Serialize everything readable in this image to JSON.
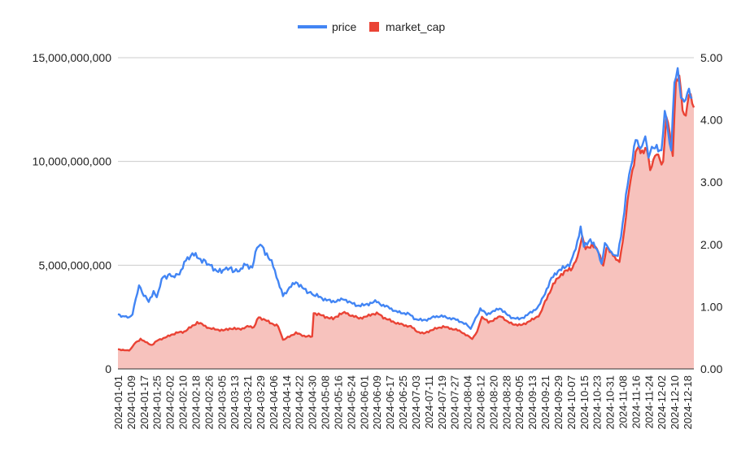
{
  "chart_data": {
    "type": "area",
    "title": "",
    "xlabel": "",
    "ylabel": "",
    "grid": true,
    "legend_position": "top-center",
    "x_ticks": [
      "2024-01-01",
      "2024-01-09",
      "2024-01-17",
      "2024-01-25",
      "2024-02-02",
      "2024-02-10",
      "2024-02-18",
      "2024-02-26",
      "2024-03-05",
      "2024-03-13",
      "2024-03-21",
      "2024-03-29",
      "2024-04-06",
      "2024-04-14",
      "2024-04-22",
      "2024-04-30",
      "2024-05-08",
      "2024-05-16",
      "2024-05-24",
      "2024-06-01",
      "2024-06-09",
      "2024-06-17",
      "2024-06-25",
      "2024-07-03",
      "2024-07-11",
      "2024-07-19",
      "2024-07-27",
      "2024-08-04",
      "2024-08-12",
      "2024-08-20",
      "2024-08-28",
      "2024-09-05",
      "2024-09-13",
      "2024-09-21",
      "2024-09-29",
      "2024-10-07",
      "2024-10-15",
      "2024-10-23",
      "2024-10-31",
      "2024-11-08",
      "2024-11-16",
      "2024-11-24",
      "2024-12-02",
      "2024-12-10",
      "2024-12-18"
    ],
    "y_left": {
      "min": 0,
      "max": 15000000000,
      "ticks": [
        "0",
        "5,000,000,000",
        "10,000,000,000",
        "15,000,000,000"
      ]
    },
    "y_right": {
      "min": 0,
      "max": 5,
      "ticks": [
        "0.00",
        "1.00",
        "2.00",
        "3.00",
        "4.00",
        "5.00"
      ]
    },
    "series": [
      {
        "name": "price",
        "axis": "right",
        "style": "line",
        "color": "#4285f4",
        "keypoints": [
          [
            "2024-01-01",
            0.88
          ],
          [
            "2024-01-04",
            0.85
          ],
          [
            "2024-01-07",
            0.82
          ],
          [
            "2024-01-10",
            0.88
          ],
          [
            "2024-01-12",
            1.12
          ],
          [
            "2024-01-14",
            1.35
          ],
          [
            "2024-01-16",
            1.22
          ],
          [
            "2024-01-20",
            1.08
          ],
          [
            "2024-01-23",
            1.25
          ],
          [
            "2024-01-25",
            1.15
          ],
          [
            "2024-01-28",
            1.45
          ],
          [
            "2024-02-02",
            1.52
          ],
          [
            "2024-02-05",
            1.48
          ],
          [
            "2024-02-09",
            1.58
          ],
          [
            "2024-02-12",
            1.75
          ],
          [
            "2024-02-16",
            1.85
          ],
          [
            "2024-02-20",
            1.78
          ],
          [
            "2024-02-26",
            1.68
          ],
          [
            "2024-03-01",
            1.6
          ],
          [
            "2024-03-05",
            1.55
          ],
          [
            "2024-03-08",
            1.62
          ],
          [
            "2024-03-13",
            1.58
          ],
          [
            "2024-03-17",
            1.6
          ],
          [
            "2024-03-20",
            1.68
          ],
          [
            "2024-03-24",
            1.62
          ],
          [
            "2024-03-27",
            1.95
          ],
          [
            "2024-03-29",
            2.0
          ],
          [
            "2024-04-02",
            1.85
          ],
          [
            "2024-04-06",
            1.65
          ],
          [
            "2024-04-09",
            1.4
          ],
          [
            "2024-04-12",
            1.18
          ],
          [
            "2024-04-16",
            1.3
          ],
          [
            "2024-04-20",
            1.4
          ],
          [
            "2024-04-24",
            1.3
          ],
          [
            "2024-04-30",
            1.2
          ],
          [
            "2024-05-04",
            1.16
          ],
          [
            "2024-05-08",
            1.12
          ],
          [
            "2024-05-12",
            1.08
          ],
          [
            "2024-05-16",
            1.1
          ],
          [
            "2024-05-20",
            1.12
          ],
          [
            "2024-05-24",
            1.06
          ],
          [
            "2024-05-28",
            1.02
          ],
          [
            "2024-06-01",
            1.02
          ],
          [
            "2024-06-05",
            1.06
          ],
          [
            "2024-06-09",
            1.08
          ],
          [
            "2024-06-13",
            1.02
          ],
          [
            "2024-06-17",
            0.98
          ],
          [
            "2024-06-21",
            0.92
          ],
          [
            "2024-06-25",
            0.9
          ],
          [
            "2024-06-29",
            0.88
          ],
          [
            "2024-07-03",
            0.8
          ],
          [
            "2024-07-07",
            0.78
          ],
          [
            "2024-07-11",
            0.8
          ],
          [
            "2024-07-15",
            0.84
          ],
          [
            "2024-07-19",
            0.85
          ],
          [
            "2024-07-23",
            0.82
          ],
          [
            "2024-07-27",
            0.8
          ],
          [
            "2024-07-31",
            0.76
          ],
          [
            "2024-08-04",
            0.7
          ],
          [
            "2024-08-06",
            0.64
          ],
          [
            "2024-08-08",
            0.76
          ],
          [
            "2024-08-12",
            0.96
          ],
          [
            "2024-08-16",
            0.88
          ],
          [
            "2024-08-20",
            0.92
          ],
          [
            "2024-08-24",
            0.98
          ],
          [
            "2024-08-28",
            0.88
          ],
          [
            "2024-09-01",
            0.82
          ],
          [
            "2024-09-05",
            0.8
          ],
          [
            "2024-09-09",
            0.85
          ],
          [
            "2024-09-13",
            0.92
          ],
          [
            "2024-09-17",
            1.0
          ],
          [
            "2024-09-21",
            1.22
          ],
          [
            "2024-09-25",
            1.45
          ],
          [
            "2024-09-29",
            1.58
          ],
          [
            "2024-10-03",
            1.62
          ],
          [
            "2024-10-07",
            1.72
          ],
          [
            "2024-10-10",
            1.95
          ],
          [
            "2024-10-13",
            2.25
          ],
          [
            "2024-10-15",
            2.0
          ],
          [
            "2024-10-19",
            2.05
          ],
          [
            "2024-10-23",
            1.95
          ],
          [
            "2024-10-26",
            1.68
          ],
          [
            "2024-10-28",
            2.02
          ],
          [
            "2024-10-31",
            1.92
          ],
          [
            "2024-11-03",
            1.8
          ],
          [
            "2024-11-05",
            1.85
          ],
          [
            "2024-11-08",
            2.3
          ],
          [
            "2024-11-11",
            3.0
          ],
          [
            "2024-11-13",
            3.2
          ],
          [
            "2024-11-16",
            3.7
          ],
          [
            "2024-11-19",
            3.55
          ],
          [
            "2024-11-22",
            3.7
          ],
          [
            "2024-11-24",
            3.45
          ],
          [
            "2024-11-26",
            3.5
          ],
          [
            "2024-11-28",
            3.62
          ],
          [
            "2024-12-02",
            3.45
          ],
          [
            "2024-12-04",
            4.2
          ],
          [
            "2024-12-06",
            3.8
          ],
          [
            "2024-12-08",
            3.5
          ],
          [
            "2024-12-10",
            4.65
          ],
          [
            "2024-12-12",
            4.75
          ],
          [
            "2024-12-14",
            4.45
          ],
          [
            "2024-12-16",
            4.2
          ],
          [
            "2024-12-18",
            4.52
          ],
          [
            "2024-12-21",
            4.35
          ]
        ]
      },
      {
        "name": "market_cap",
        "axis": "left",
        "style": "area",
        "color": "#ea4335",
        "fill": "#f7c2bd",
        "keypoints": [
          [
            "2024-01-01",
            950000000
          ],
          [
            "2024-01-05",
            900000000
          ],
          [
            "2024-01-08",
            880000000
          ],
          [
            "2024-01-11",
            1200000000
          ],
          [
            "2024-01-15",
            1450000000
          ],
          [
            "2024-01-18",
            1300000000
          ],
          [
            "2024-01-22",
            1150000000
          ],
          [
            "2024-01-26",
            1400000000
          ],
          [
            "2024-01-30",
            1500000000
          ],
          [
            "2024-02-03",
            1650000000
          ],
          [
            "2024-02-07",
            1750000000
          ],
          [
            "2024-02-11",
            1800000000
          ],
          [
            "2024-02-15",
            2000000000
          ],
          [
            "2024-02-19",
            2250000000
          ],
          [
            "2024-02-23",
            2100000000
          ],
          [
            "2024-02-27",
            1950000000
          ],
          [
            "2024-03-02",
            1900000000
          ],
          [
            "2024-03-06",
            1850000000
          ],
          [
            "2024-03-10",
            1950000000
          ],
          [
            "2024-03-14",
            1920000000
          ],
          [
            "2024-03-18",
            1950000000
          ],
          [
            "2024-03-22",
            2050000000
          ],
          [
            "2024-03-25",
            2000000000
          ],
          [
            "2024-03-28",
            2500000000
          ],
          [
            "2024-04-01",
            2350000000
          ],
          [
            "2024-04-05",
            2200000000
          ],
          [
            "2024-04-09",
            2050000000
          ],
          [
            "2024-04-12",
            1400000000
          ],
          [
            "2024-04-16",
            1550000000
          ],
          [
            "2024-04-20",
            1750000000
          ],
          [
            "2024-04-24",
            1600000000
          ],
          [
            "2024-04-30",
            1550000000
          ],
          [
            "2024-05-01",
            2700000000
          ],
          [
            "2024-05-05",
            2600000000
          ],
          [
            "2024-05-09",
            2500000000
          ],
          [
            "2024-05-13",
            2400000000
          ],
          [
            "2024-05-17",
            2650000000
          ],
          [
            "2024-05-21",
            2700000000
          ],
          [
            "2024-05-25",
            2550000000
          ],
          [
            "2024-05-29",
            2450000000
          ],
          [
            "2024-06-02",
            2500000000
          ],
          [
            "2024-06-06",
            2650000000
          ],
          [
            "2024-06-10",
            2650000000
          ],
          [
            "2024-06-14",
            2450000000
          ],
          [
            "2024-06-18",
            2300000000
          ],
          [
            "2024-06-22",
            2200000000
          ],
          [
            "2024-06-26",
            2100000000
          ],
          [
            "2024-06-30",
            2050000000
          ],
          [
            "2024-07-04",
            1800000000
          ],
          [
            "2024-07-08",
            1700000000
          ],
          [
            "2024-07-12",
            1850000000
          ],
          [
            "2024-07-16",
            1950000000
          ],
          [
            "2024-07-20",
            2050000000
          ],
          [
            "2024-07-24",
            1950000000
          ],
          [
            "2024-07-28",
            1900000000
          ],
          [
            "2024-08-01",
            1750000000
          ],
          [
            "2024-08-05",
            1550000000
          ],
          [
            "2024-08-07",
            1450000000
          ],
          [
            "2024-08-10",
            1800000000
          ],
          [
            "2024-08-13",
            2500000000
          ],
          [
            "2024-08-17",
            2250000000
          ],
          [
            "2024-08-21",
            2400000000
          ],
          [
            "2024-08-25",
            2550000000
          ],
          [
            "2024-08-29",
            2250000000
          ],
          [
            "2024-09-02",
            2150000000
          ],
          [
            "2024-09-06",
            2100000000
          ],
          [
            "2024-09-10",
            2250000000
          ],
          [
            "2024-09-14",
            2400000000
          ],
          [
            "2024-09-18",
            2650000000
          ],
          [
            "2024-09-22",
            3400000000
          ],
          [
            "2024-09-26",
            4050000000
          ],
          [
            "2024-09-30",
            4500000000
          ],
          [
            "2024-10-04",
            4700000000
          ],
          [
            "2024-10-08",
            4900000000
          ],
          [
            "2024-10-11",
            5400000000
          ],
          [
            "2024-10-14",
            6350000000
          ],
          [
            "2024-10-16",
            5850000000
          ],
          [
            "2024-10-20",
            5950000000
          ],
          [
            "2024-10-24",
            5700000000
          ],
          [
            "2024-10-27",
            4900000000
          ],
          [
            "2024-10-29",
            5900000000
          ],
          [
            "2024-11-01",
            5600000000
          ],
          [
            "2024-11-04",
            5250000000
          ],
          [
            "2024-11-06",
            5200000000
          ],
          [
            "2024-11-09",
            6600000000
          ],
          [
            "2024-11-12",
            8800000000
          ],
          [
            "2024-11-14",
            9400000000
          ],
          [
            "2024-11-17",
            10800000000
          ],
          [
            "2024-11-20",
            10400000000
          ],
          [
            "2024-11-23",
            10600000000
          ],
          [
            "2024-11-25",
            9600000000
          ],
          [
            "2024-11-27",
            10000000000
          ],
          [
            "2024-11-29",
            10500000000
          ],
          [
            "2024-12-03",
            9800000000
          ],
          [
            "2024-12-05",
            12400000000
          ],
          [
            "2024-12-07",
            11200000000
          ],
          [
            "2024-12-09",
            10400000000
          ],
          [
            "2024-12-11",
            13900000000
          ],
          [
            "2024-12-13",
            14100000000
          ],
          [
            "2024-12-15",
            12600000000
          ],
          [
            "2024-12-17",
            12000000000
          ],
          [
            "2024-12-19",
            13500000000
          ],
          [
            "2024-12-22",
            12600000000
          ]
        ]
      }
    ]
  }
}
